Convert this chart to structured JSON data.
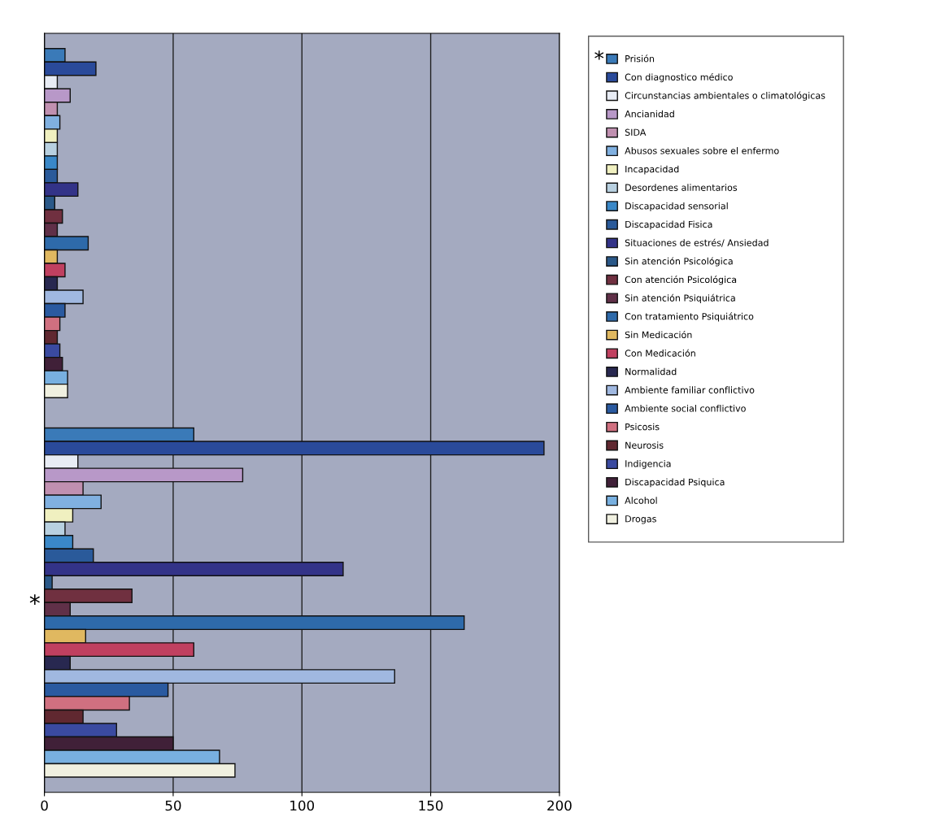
{
  "chart_data": {
    "type": "bar",
    "orientation": "horizontal",
    "categories": [
      null,
      "*"
    ],
    "series": [
      {
        "name": "Prisión",
        "color": "#3a7ab8",
        "values": [
          8,
          58
        ]
      },
      {
        "name": "Con diagnostico médico",
        "color": "#2a4a9a",
        "values": [
          20,
          194
        ]
      },
      {
        "name": "Circunstancias ambientales o climatológicas",
        "color": "#e8ecf4",
        "values": [
          5,
          13
        ]
      },
      {
        "name": "Ancianidad",
        "color": "#b898c8",
        "values": [
          10,
          77
        ]
      },
      {
        "name": "SIDA",
        "color": "#c090b0",
        "values": [
          5,
          15
        ]
      },
      {
        "name": "Abusos sexuales sobre el enfermo",
        "color": "#80b0e0",
        "values": [
          6,
          22
        ]
      },
      {
        "name": "Incapacidad",
        "color": "#f0f0c0",
        "values": [
          5,
          11
        ]
      },
      {
        "name": "Desordenes alimentarios",
        "color": "#b8d0e0",
        "values": [
          5,
          8
        ]
      },
      {
        "name": "Discapacidad sensorial",
        "color": "#3a88c8",
        "values": [
          5,
          11
        ]
      },
      {
        "name": "Discapacidad Fisica",
        "color": "#2a5a9a",
        "values": [
          5,
          19
        ]
      },
      {
        "name": "Situaciones de estrés/ Ansiedad",
        "color": "#333388",
        "values": [
          13,
          116
        ]
      },
      {
        "name": "Sin atención Psicológica",
        "color": "#2a5888",
        "values": [
          4,
          3
        ]
      },
      {
        "name": "Con atención Psicológica",
        "color": "#703040",
        "values": [
          7,
          34
        ]
      },
      {
        "name": "Sin atención Psiquiátrica",
        "color": "#603048",
        "values": [
          5,
          10
        ]
      },
      {
        "name": "Con tratamiento Psiquiátrico",
        "color": "#2e6aaa",
        "values": [
          17,
          163
        ]
      },
      {
        "name": "Sin Medicación",
        "color": "#e0b860",
        "values": [
          5,
          16
        ]
      },
      {
        "name": "Con Medicación",
        "color": "#c04060",
        "values": [
          8,
          58
        ]
      },
      {
        "name": "Normalidad",
        "color": "#282850",
        "values": [
          5,
          10
        ]
      },
      {
        "name": "Ambiente familiar conflictivo",
        "color": "#a0b8e0",
        "values": [
          15,
          136
        ]
      },
      {
        "name": "Ambiente social conflictivo",
        "color": "#2a5aa0",
        "values": [
          8,
          48
        ]
      },
      {
        "name": "Psicosis",
        "color": "#d07080",
        "values": [
          6,
          33
        ]
      },
      {
        "name": "Neurosis",
        "color": "#602830",
        "values": [
          5,
          15
        ]
      },
      {
        "name": "Indigencia",
        "color": "#3a4aa0",
        "values": [
          6,
          28
        ]
      },
      {
        "name": "Discapacidad Psiquica",
        "color": "#402038",
        "values": [
          7,
          50
        ]
      },
      {
        "name": "Alcohol",
        "color": "#78b0e0",
        "values": [
          9,
          68
        ]
      },
      {
        "name": "Drogas",
        "color": "#f0f0e0",
        "values": [
          9,
          74
        ]
      }
    ],
    "xlim": [
      0,
      200
    ],
    "xticks": [
      0,
      50,
      100,
      150,
      200
    ],
    "grid": "x",
    "legend": "right",
    "annotations": [
      "*"
    ]
  }
}
